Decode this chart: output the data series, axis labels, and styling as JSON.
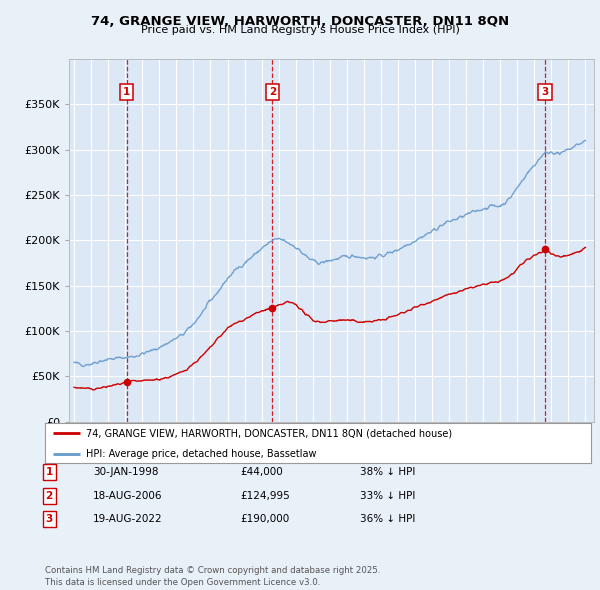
{
  "title1": "74, GRANGE VIEW, HARWORTH, DONCASTER, DN11 8QN",
  "title2": "Price paid vs. HM Land Registry's House Price Index (HPI)",
  "background_color": "#e8f0f8",
  "plot_bg_color": "#dce8f5",
  "grid_color": "#ffffff",
  "red_line_color": "#cc0000",
  "blue_line_color": "#6699cc",
  "sale_points": [
    {
      "date_num": 1998.08,
      "price": 44000,
      "label": "1"
    },
    {
      "date_num": 2006.63,
      "price": 124995,
      "label": "2"
    },
    {
      "date_num": 2022.63,
      "price": 190000,
      "label": "3"
    }
  ],
  "vline_dates": [
    1998.08,
    2006.63,
    2022.63
  ],
  "ylim": [
    0,
    400000
  ],
  "xlim": [
    1994.7,
    2025.5
  ],
  "yticks": [
    0,
    50000,
    100000,
    150000,
    200000,
    250000,
    300000,
    350000
  ],
  "ytick_labels": [
    "£0",
    "£50K",
    "£100K",
    "£150K",
    "£200K",
    "£250K",
    "£300K",
    "£350K"
  ],
  "legend_red_label": "74, GRANGE VIEW, HARWORTH, DONCASTER, DN11 8QN (detached house)",
  "legend_blue_label": "HPI: Average price, detached house, Bassetlaw",
  "table_rows": [
    {
      "num": "1",
      "date": "30-JAN-1998",
      "price": "£44,000",
      "pct": "38% ↓ HPI"
    },
    {
      "num": "2",
      "date": "18-AUG-2006",
      "price": "£124,995",
      "pct": "33% ↓ HPI"
    },
    {
      "num": "3",
      "date": "19-AUG-2022",
      "price": "£190,000",
      "pct": "36% ↓ HPI"
    }
  ],
  "footer": "Contains HM Land Registry data © Crown copyright and database right 2025.\nThis data is licensed under the Open Government Licence v3.0.",
  "hpi_x": [
    1995.0,
    1995.5,
    1996.0,
    1996.5,
    1997.0,
    1997.5,
    1998.0,
    1998.5,
    1999.0,
    1999.5,
    2000.0,
    2000.5,
    2001.0,
    2001.5,
    2002.0,
    2002.5,
    2003.0,
    2003.5,
    2004.0,
    2004.5,
    2005.0,
    2005.5,
    2006.0,
    2006.5,
    2007.0,
    2007.5,
    2008.0,
    2008.5,
    2009.0,
    2009.5,
    2010.0,
    2010.5,
    2011.0,
    2011.5,
    2012.0,
    2012.5,
    2013.0,
    2013.5,
    2014.0,
    2014.5,
    2015.0,
    2015.5,
    2016.0,
    2016.5,
    2017.0,
    2017.5,
    2018.0,
    2018.5,
    2019.0,
    2019.5,
    2020.0,
    2020.5,
    2021.0,
    2021.5,
    2022.0,
    2022.5,
    2023.0,
    2023.5,
    2024.0,
    2024.5,
    2025.0
  ],
  "hpi_y": [
    65000,
    63000,
    64000,
    67000,
    69000,
    70000,
    71000,
    72000,
    75000,
    78000,
    82000,
    87000,
    92000,
    98000,
    108000,
    120000,
    133000,
    145000,
    158000,
    168000,
    175000,
    183000,
    191000,
    198000,
    202000,
    198000,
    193000,
    184000,
    177000,
    175000,
    178000,
    180000,
    182000,
    183000,
    181000,
    181000,
    183000,
    186000,
    190000,
    195000,
    200000,
    205000,
    210000,
    216000,
    221000,
    224000,
    228000,
    232000,
    235000,
    238000,
    238000,
    245000,
    258000,
    272000,
    283000,
    295000,
    298000,
    295000,
    300000,
    305000,
    310000
  ],
  "red_x": [
    1995.0,
    1995.5,
    1996.0,
    1996.5,
    1997.0,
    1997.5,
    1998.0,
    1998.08,
    1998.5,
    1999.0,
    1999.5,
    2000.0,
    2000.5,
    2001.0,
    2001.5,
    2002.0,
    2002.5,
    2003.0,
    2003.5,
    2004.0,
    2004.5,
    2005.0,
    2005.5,
    2006.0,
    2006.5,
    2006.63,
    2007.0,
    2007.5,
    2008.0,
    2008.5,
    2009.0,
    2009.5,
    2010.0,
    2010.5,
    2011.0,
    2011.5,
    2012.0,
    2012.5,
    2013.0,
    2013.5,
    2014.0,
    2014.5,
    2015.0,
    2015.5,
    2016.0,
    2016.5,
    2017.0,
    2017.5,
    2018.0,
    2018.5,
    2019.0,
    2019.5,
    2020.0,
    2020.5,
    2021.0,
    2021.5,
    2022.0,
    2022.5,
    2022.63,
    2023.0,
    2023.5,
    2024.0,
    2024.5,
    2025.0
  ],
  "red_y": [
    38000,
    37000,
    36000,
    37000,
    39000,
    41000,
    43000,
    44000,
    44500,
    45000,
    46000,
    47000,
    49000,
    52000,
    57000,
    64000,
    72000,
    82000,
    93000,
    103000,
    109000,
    113000,
    118000,
    122000,
    125000,
    124995,
    128000,
    132000,
    130000,
    120000,
    112000,
    110000,
    111000,
    112000,
    112000,
    111000,
    110000,
    111000,
    112000,
    115000,
    118000,
    122000,
    126000,
    130000,
    133000,
    137000,
    140000,
    143000,
    146000,
    149000,
    151000,
    153000,
    155000,
    160000,
    168000,
    178000,
    183000,
    188000,
    190000,
    185000,
    182000,
    184000,
    187000,
    192000
  ]
}
